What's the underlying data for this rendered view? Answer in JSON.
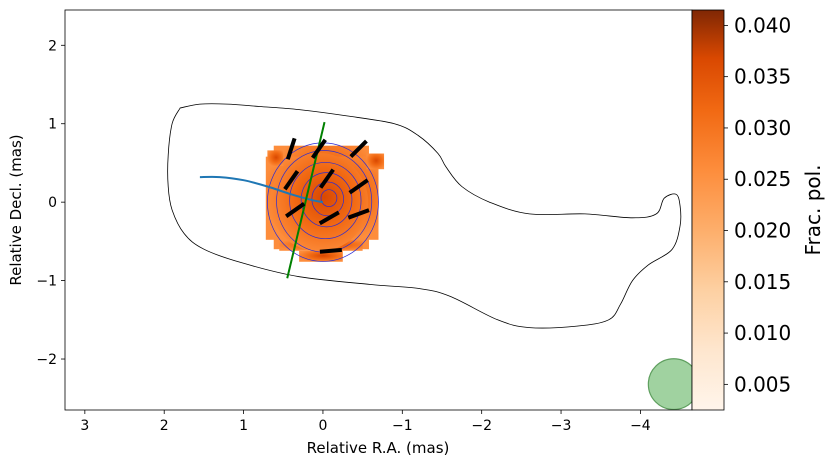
{
  "chart_data": {
    "type": "heatmap",
    "title": "",
    "xlabel": "Relative R.A. (mas)",
    "ylabel": "Relative Decl. (mas)",
    "xlim": [
      3.25,
      -4.65
    ],
    "ylim": [
      -2.65,
      2.45
    ],
    "x_ticks": [
      3,
      2,
      1,
      0,
      -1,
      -2,
      -3,
      -4
    ],
    "x_tick_labels": [
      "3",
      "2",
      "1",
      "0",
      "−1",
      "−2",
      "−3",
      "−4"
    ],
    "y_ticks": [
      2,
      1,
      0,
      -1,
      -2
    ],
    "y_tick_labels": [
      "2",
      "1",
      "0",
      "−1",
      "−2"
    ],
    "colorbar": {
      "label": "Frac. pol.",
      "range": [
        0.0025,
        0.0415
      ],
      "ticks": [
        0.005,
        0.01,
        0.015,
        0.02,
        0.025,
        0.03,
        0.035,
        0.04
      ],
      "tick_labels": [
        "0.005",
        "0.010",
        "0.015",
        "0.020",
        "0.025",
        "0.030",
        "0.035",
        "0.040"
      ],
      "colormap": "Oranges"
    },
    "outer_contour": [
      [
        1.8,
        1.2
      ],
      [
        1.55,
        1.25
      ],
      [
        1.2,
        1.25
      ],
      [
        0.8,
        1.22
      ],
      [
        0.3,
        1.18
      ],
      [
        -0.3,
        1.1
      ],
      [
        -0.9,
        1.0
      ],
      [
        -1.2,
        0.85
      ],
      [
        -1.45,
        0.62
      ],
      [
        -1.55,
        0.45
      ],
      [
        -1.75,
        0.2
      ],
      [
        -2.1,
        0.0
      ],
      [
        -2.6,
        -0.15
      ],
      [
        -3.3,
        -0.15
      ],
      [
        -3.9,
        -0.2
      ],
      [
        -4.2,
        -0.15
      ],
      [
        -4.3,
        0.05
      ],
      [
        -4.45,
        0.1
      ],
      [
        -4.5,
        -0.05
      ],
      [
        -4.5,
        -0.3
      ],
      [
        -4.4,
        -0.6
      ],
      [
        -4.1,
        -0.8
      ],
      [
        -3.9,
        -1.0
      ],
      [
        -3.75,
        -1.3
      ],
      [
        -3.6,
        -1.5
      ],
      [
        -3.2,
        -1.58
      ],
      [
        -2.6,
        -1.6
      ],
      [
        -2.2,
        -1.5
      ],
      [
        -1.6,
        -1.2
      ],
      [
        -1.2,
        -1.1
      ],
      [
        -0.6,
        -1.05
      ],
      [
        0.3,
        -0.95
      ],
      [
        1.0,
        -0.78
      ],
      [
        1.5,
        -0.6
      ],
      [
        1.75,
        -0.4
      ],
      [
        1.9,
        -0.1
      ],
      [
        1.95,
        0.2
      ],
      [
        1.95,
        0.6
      ],
      [
        1.9,
        1.0
      ],
      [
        1.8,
        1.2
      ]
    ],
    "pixel_map": [
      {
        "x": 0.05,
        "y": 0.05,
        "value": 0.032
      },
      {
        "x": 0.3,
        "y": 0.25,
        "value": 0.024
      },
      {
        "x": -0.2,
        "y": 0.3,
        "value": 0.03
      },
      {
        "x": 0.15,
        "y": -0.3,
        "value": 0.033
      },
      {
        "x": -0.35,
        "y": -0.2,
        "value": 0.027
      }
    ],
    "ipol_contour_radii": [
      0.7,
      0.6,
      0.45,
      0.32,
      0.2,
      0.1
    ],
    "ipol_contour_center": [
      0.0,
      0.0
    ],
    "evpa_vectors": [
      {
        "x": 0.4,
        "y": 0.68,
        "angle_deg": -72
      },
      {
        "x": 0.05,
        "y": 0.68,
        "angle_deg": -55
      },
      {
        "x": -0.45,
        "y": 0.68,
        "angle_deg": -45
      },
      {
        "x": -0.05,
        "y": 0.3,
        "angle_deg": -55
      },
      {
        "x": 0.4,
        "y": 0.28,
        "angle_deg": -55
      },
      {
        "x": -0.45,
        "y": 0.2,
        "angle_deg": -35
      },
      {
        "x": 0.35,
        "y": -0.1,
        "angle_deg": -35
      },
      {
        "x": -0.08,
        "y": -0.2,
        "angle_deg": -30
      },
      {
        "x": -0.45,
        "y": -0.15,
        "angle_deg": -20
      },
      {
        "x": -0.1,
        "y": -0.62,
        "angle_deg": -5
      }
    ],
    "jet_curve": [
      [
        1.55,
        0.32
      ],
      [
        1.3,
        0.32
      ],
      [
        1.0,
        0.28
      ],
      [
        0.7,
        0.2
      ],
      [
        0.4,
        0.1
      ],
      [
        0.15,
        0.03
      ],
      [
        0.0,
        0.0
      ]
    ],
    "reference_line": [
      [
        0.45,
        -0.97
      ],
      [
        -0.02,
        1.02
      ]
    ],
    "beam": {
      "x": -4.42,
      "y": -2.32,
      "radius": 0.32
    }
  },
  "colors": {
    "outer_contour": "#000000",
    "ipol_contours": "#2a2ad6",
    "evpa": "#000000",
    "jet_curve": "#1f77b4",
    "reference_line": "#008000",
    "beam_fill": "#8fca8f",
    "beam_edge": "#5f9f5f"
  }
}
